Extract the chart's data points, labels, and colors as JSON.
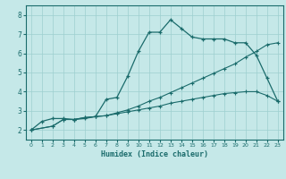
{
  "xlabel": "Humidex (Indice chaleur)",
  "background_color": "#c5e8e8",
  "line_color": "#1a6b6b",
  "grid_color": "#9dcfcf",
  "xlim": [
    -0.5,
    23.5
  ],
  "ylim": [
    1.5,
    8.5
  ],
  "xticks": [
    0,
    1,
    2,
    3,
    4,
    5,
    6,
    7,
    8,
    9,
    10,
    11,
    12,
    13,
    14,
    15,
    16,
    17,
    18,
    19,
    20,
    21,
    22,
    23
  ],
  "yticks": [
    2,
    3,
    4,
    5,
    6,
    7,
    8
  ],
  "curve1_x": [
    0,
    1,
    2,
    3,
    4,
    5,
    6,
    7,
    8,
    9,
    10,
    11,
    12,
    13,
    14,
    15,
    16,
    17,
    18,
    19,
    20,
    21,
    22,
    23
  ],
  "curve1_y": [
    2.0,
    2.45,
    2.6,
    2.6,
    2.55,
    2.6,
    2.7,
    3.6,
    3.7,
    4.8,
    6.1,
    7.1,
    7.1,
    7.75,
    7.3,
    6.85,
    6.75,
    6.75,
    6.75,
    6.55,
    6.55,
    5.9,
    4.7,
    3.5
  ],
  "curve2_x": [
    0,
    2,
    3,
    4,
    5,
    6,
    7,
    8,
    9,
    10,
    11,
    12,
    13,
    14,
    15,
    16,
    17,
    18,
    19,
    20,
    21,
    22,
    23
  ],
  "curve2_y": [
    2.0,
    2.2,
    2.55,
    2.55,
    2.65,
    2.7,
    2.75,
    2.85,
    2.95,
    3.05,
    3.15,
    3.25,
    3.4,
    3.5,
    3.6,
    3.7,
    3.8,
    3.9,
    3.95,
    4.0,
    4.0,
    3.8,
    3.5
  ],
  "curve3_x": [
    0,
    2,
    3,
    4,
    5,
    6,
    7,
    8,
    9,
    10,
    11,
    12,
    13,
    14,
    15,
    16,
    17,
    18,
    19,
    20,
    21,
    22,
    23
  ],
  "curve3_y": [
    2.0,
    2.2,
    2.55,
    2.55,
    2.65,
    2.7,
    2.75,
    2.9,
    3.05,
    3.25,
    3.5,
    3.7,
    3.95,
    4.2,
    4.45,
    4.7,
    4.95,
    5.2,
    5.45,
    5.8,
    6.1,
    6.45,
    6.55
  ]
}
